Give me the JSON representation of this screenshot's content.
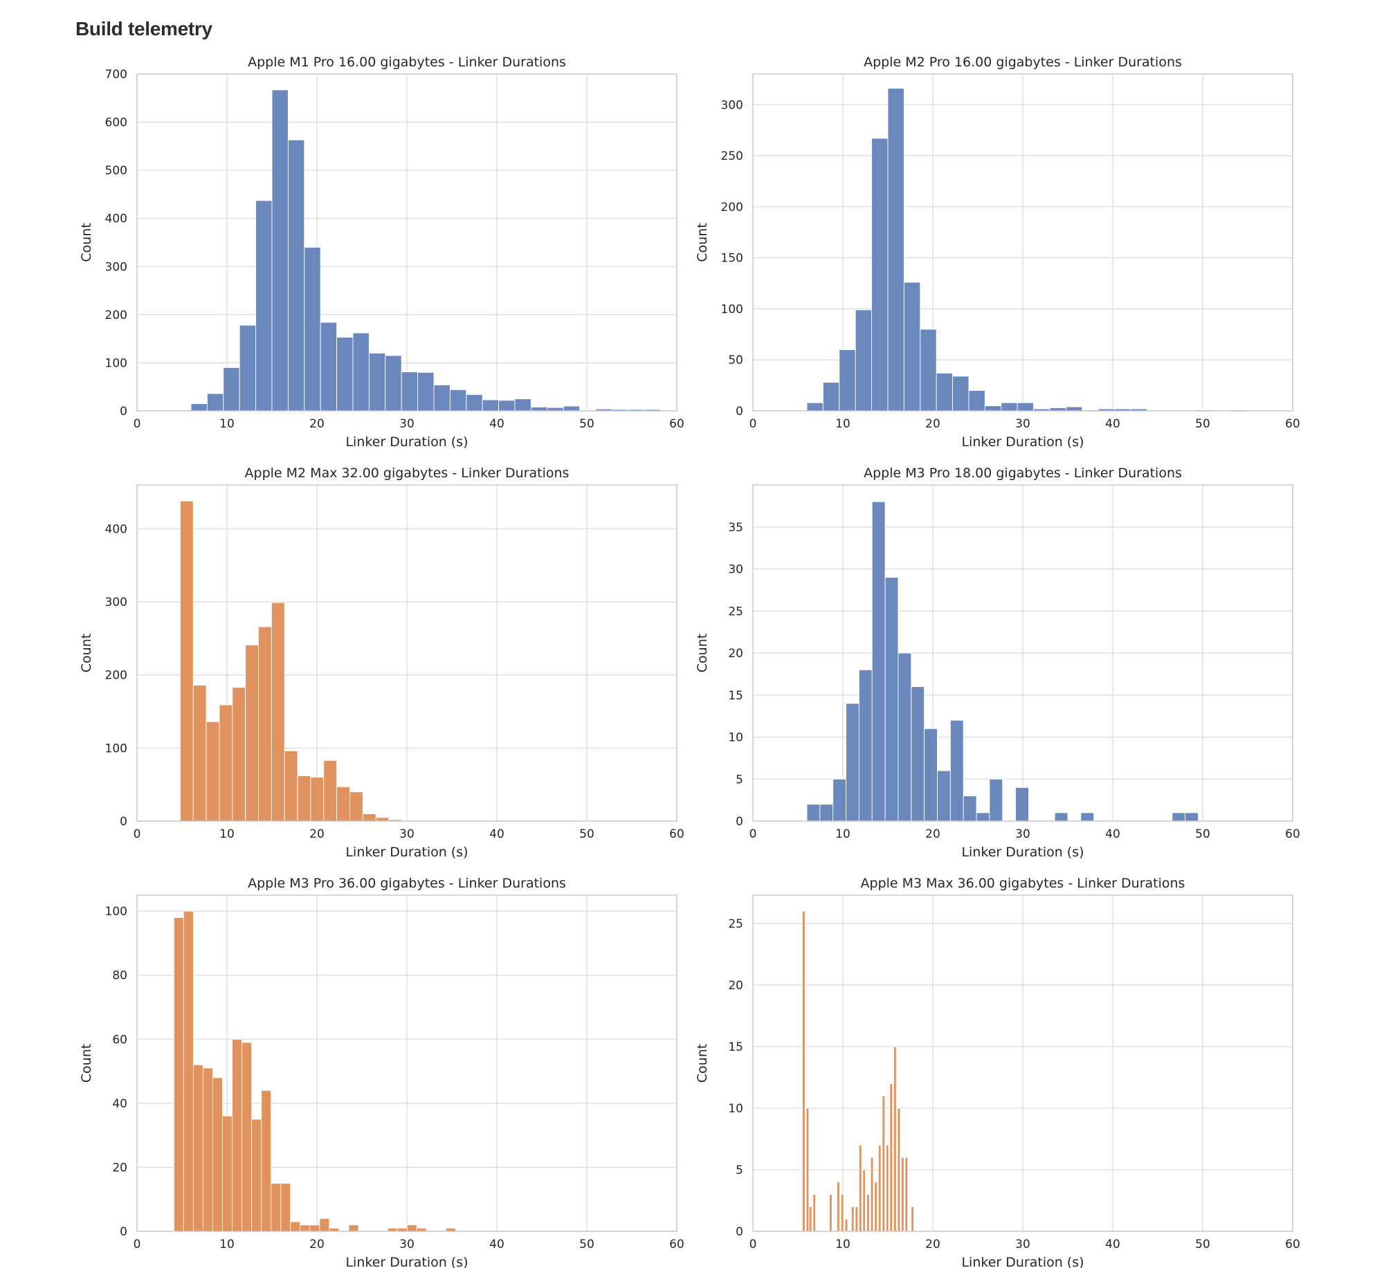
{
  "page": {
    "title": "Build telemetry"
  },
  "colors": {
    "blue": "#6b88bd",
    "orange": "#e0925f",
    "grid": "#dcdce0",
    "frame": "#cdcdd1",
    "text": "#262626"
  },
  "chart_data": [
    {
      "type": "bar",
      "title": "Apple M1 Pro 16.00 gigabytes - Linker Durations",
      "xlabel": "Linker Duration (s)",
      "ylabel": "Count",
      "xlim": [
        0,
        60
      ],
      "ylim": [
        0,
        700
      ],
      "xticks": [
        0,
        10,
        20,
        30,
        40,
        50,
        60
      ],
      "yticks": [
        0,
        100,
        200,
        300,
        400,
        500,
        600,
        700
      ],
      "grid": true,
      "color": "blue",
      "bin_width": 1.8,
      "bins": [
        [
          6.0,
          15
        ],
        [
          7.8,
          36
        ],
        [
          9.6,
          90
        ],
        [
          11.4,
          178
        ],
        [
          13.2,
          437
        ],
        [
          15.0,
          667
        ],
        [
          16.8,
          563
        ],
        [
          18.6,
          340
        ],
        [
          20.4,
          184
        ],
        [
          22.2,
          153
        ],
        [
          24.0,
          162
        ],
        [
          25.8,
          120
        ],
        [
          27.6,
          115
        ],
        [
          29.4,
          81
        ],
        [
          31.2,
          80
        ],
        [
          33.0,
          54
        ],
        [
          34.8,
          44
        ],
        [
          36.6,
          34
        ],
        [
          38.4,
          23
        ],
        [
          40.2,
          22
        ],
        [
          42.0,
          25
        ],
        [
          43.8,
          8
        ],
        [
          45.6,
          7
        ],
        [
          47.4,
          10
        ],
        [
          49.2,
          1
        ],
        [
          51.0,
          4
        ],
        [
          52.8,
          3
        ],
        [
          54.6,
          3
        ],
        [
          56.4,
          3
        ]
      ]
    },
    {
      "type": "bar",
      "title": "Apple M2 Pro 16.00 gigabytes - Linker Durations",
      "xlabel": "Linker Duration (s)",
      "ylabel": "Count",
      "xlim": [
        0,
        60
      ],
      "ylim": [
        0,
        330
      ],
      "xticks": [
        0,
        10,
        20,
        30,
        40,
        50,
        60
      ],
      "yticks": [
        0,
        50,
        100,
        150,
        200,
        250,
        300
      ],
      "grid": true,
      "color": "blue",
      "bin_width": 1.8,
      "bins": [
        [
          6.0,
          8
        ],
        [
          7.8,
          28
        ],
        [
          9.6,
          60
        ],
        [
          11.4,
          99
        ],
        [
          13.2,
          267
        ],
        [
          15.0,
          316
        ],
        [
          16.8,
          126
        ],
        [
          18.6,
          80
        ],
        [
          20.4,
          37
        ],
        [
          22.2,
          34
        ],
        [
          24.0,
          20
        ],
        [
          25.8,
          5
        ],
        [
          27.6,
          8
        ],
        [
          29.4,
          8
        ],
        [
          31.2,
          2
        ],
        [
          33.0,
          3
        ],
        [
          34.8,
          4
        ],
        [
          36.6,
          1
        ],
        [
          38.4,
          2
        ],
        [
          40.2,
          2
        ],
        [
          42.0,
          2
        ],
        [
          43.8,
          0
        ],
        [
          45.6,
          0
        ],
        [
          47.4,
          0
        ],
        [
          49.2,
          1
        ],
        [
          51.0,
          0
        ],
        [
          52.8,
          1
        ],
        [
          54.6,
          0
        ],
        [
          56.4,
          0
        ]
      ]
    },
    {
      "type": "bar",
      "title": "Apple M2 Max 32.00 gigabytes - Linker Durations",
      "xlabel": "Linker Duration (s)",
      "ylabel": "Count",
      "xlim": [
        0,
        60
      ],
      "ylim": [
        0,
        460
      ],
      "xticks": [
        0,
        10,
        20,
        30,
        40,
        50,
        60
      ],
      "yticks": [
        0,
        100,
        200,
        300,
        400
      ],
      "grid": true,
      "color": "orange",
      "bin_width": 1.45,
      "bins": [
        [
          4.8,
          438
        ],
        [
          6.25,
          186
        ],
        [
          7.7,
          136
        ],
        [
          9.15,
          159
        ],
        [
          10.6,
          183
        ],
        [
          12.05,
          241
        ],
        [
          13.5,
          266
        ],
        [
          14.95,
          299
        ],
        [
          16.4,
          96
        ],
        [
          17.85,
          62
        ],
        [
          19.3,
          60
        ],
        [
          20.75,
          83
        ],
        [
          22.2,
          47
        ],
        [
          23.65,
          40
        ],
        [
          25.1,
          10
        ],
        [
          26.55,
          5
        ],
        [
          28.0,
          2
        ],
        [
          29.45,
          1
        ],
        [
          30.9,
          0
        ],
        [
          32.35,
          1
        ],
        [
          33.8,
          0
        ],
        [
          35.25,
          1
        ],
        [
          36.7,
          0
        ],
        [
          38.15,
          0
        ],
        [
          39.6,
          0
        ],
        [
          41.05,
          0
        ],
        [
          42.5,
          0
        ],
        [
          43.95,
          0
        ],
        [
          45.4,
          1
        ],
        [
          46.85,
          0
        ],
        [
          48.3,
          0
        ],
        [
          49.75,
          0
        ],
        [
          51.2,
          0
        ],
        [
          52.65,
          0
        ],
        [
          54.1,
          1
        ],
        [
          55.55,
          0
        ],
        [
          57.0,
          1
        ]
      ]
    },
    {
      "type": "bar",
      "title": "Apple M3 Pro 18.00 gigabytes - Linker Durations",
      "xlabel": "Linker Duration (s)",
      "ylabel": "Count",
      "xlim": [
        0,
        60
      ],
      "ylim": [
        0,
        40
      ],
      "xticks": [
        0,
        10,
        20,
        30,
        40,
        50,
        60
      ],
      "yticks": [
        0,
        5,
        10,
        15,
        20,
        25,
        30,
        35
      ],
      "grid": true,
      "color": "blue",
      "bin_width": 1.45,
      "bins": [
        [
          6.0,
          2
        ],
        [
          7.45,
          2
        ],
        [
          8.9,
          5
        ],
        [
          10.35,
          14
        ],
        [
          11.8,
          18
        ],
        [
          13.25,
          38
        ],
        [
          14.7,
          29
        ],
        [
          16.15,
          20
        ],
        [
          17.6,
          16
        ],
        [
          19.05,
          11
        ],
        [
          20.5,
          6
        ],
        [
          21.95,
          12
        ],
        [
          23.4,
          3
        ],
        [
          24.85,
          1
        ],
        [
          26.3,
          5
        ],
        [
          27.75,
          0
        ],
        [
          29.2,
          4
        ],
        [
          30.65,
          0
        ],
        [
          32.1,
          0
        ],
        [
          33.55,
          1
        ],
        [
          35.0,
          0
        ],
        [
          36.45,
          1
        ],
        [
          37.9,
          0
        ],
        [
          39.35,
          0
        ],
        [
          40.8,
          0
        ],
        [
          42.25,
          0
        ],
        [
          43.7,
          0
        ],
        [
          45.15,
          0
        ],
        [
          46.6,
          1
        ],
        [
          48.05,
          1
        ]
      ]
    },
    {
      "type": "bar",
      "title": "Apple M3 Pro 36.00 gigabytes - Linker Durations",
      "xlabel": "Linker Duration (s)",
      "ylabel": "Count",
      "xlim": [
        0,
        60
      ],
      "ylim": [
        0,
        105
      ],
      "xticks": [
        0,
        10,
        20,
        30,
        40,
        50,
        60
      ],
      "yticks": [
        0,
        20,
        40,
        60,
        80,
        100
      ],
      "grid": true,
      "color": "orange",
      "bin_width": 1.08,
      "bins": [
        [
          4.1,
          98
        ],
        [
          5.18,
          100
        ],
        [
          6.26,
          52
        ],
        [
          7.34,
          51
        ],
        [
          8.42,
          48
        ],
        [
          9.5,
          36
        ],
        [
          10.58,
          60
        ],
        [
          11.66,
          59
        ],
        [
          12.74,
          35
        ],
        [
          13.82,
          44
        ],
        [
          14.9,
          15
        ],
        [
          15.98,
          15
        ],
        [
          17.06,
          3
        ],
        [
          18.14,
          2
        ],
        [
          19.22,
          2
        ],
        [
          20.3,
          4
        ],
        [
          21.38,
          1
        ],
        [
          22.46,
          0
        ],
        [
          23.54,
          2
        ],
        [
          24.62,
          0
        ],
        [
          25.7,
          0
        ],
        [
          26.78,
          0
        ],
        [
          27.86,
          1
        ],
        [
          28.94,
          1
        ],
        [
          30.02,
          2
        ],
        [
          31.1,
          1
        ],
        [
          32.18,
          0
        ],
        [
          33.26,
          0
        ],
        [
          34.34,
          1
        ]
      ]
    },
    {
      "type": "bar",
      "title": "Apple M3 Max 36.00 gigabytes - Linker Durations",
      "xlabel": "Linker Duration (s)",
      "ylabel": "Count",
      "xlim": [
        0,
        60
      ],
      "ylim": [
        0,
        27.3
      ],
      "xticks": [
        0,
        10,
        20,
        30,
        40,
        50,
        60
      ],
      "yticks": [
        0,
        5,
        10,
        15,
        20,
        25
      ],
      "grid": true,
      "color": "orange",
      "bin_width": 0.29,
      "bins": [
        [
          5.5,
          26
        ],
        [
          5.93,
          10
        ],
        [
          6.25,
          2
        ],
        [
          6.68,
          3
        ],
        [
          8.5,
          3
        ],
        [
          9.35,
          4
        ],
        [
          9.79,
          3
        ],
        [
          10.24,
          1
        ],
        [
          10.95,
          2
        ],
        [
          11.38,
          2
        ],
        [
          11.8,
          7
        ],
        [
          12.22,
          5
        ],
        [
          12.66,
          3
        ],
        [
          13.09,
          6
        ],
        [
          13.52,
          4
        ],
        [
          13.95,
          7
        ],
        [
          14.38,
          11
        ],
        [
          14.8,
          7
        ],
        [
          15.22,
          12
        ],
        [
          15.65,
          15
        ],
        [
          16.08,
          10
        ],
        [
          16.5,
          6
        ],
        [
          16.92,
          6
        ],
        [
          17.6,
          2
        ]
      ]
    }
  ]
}
